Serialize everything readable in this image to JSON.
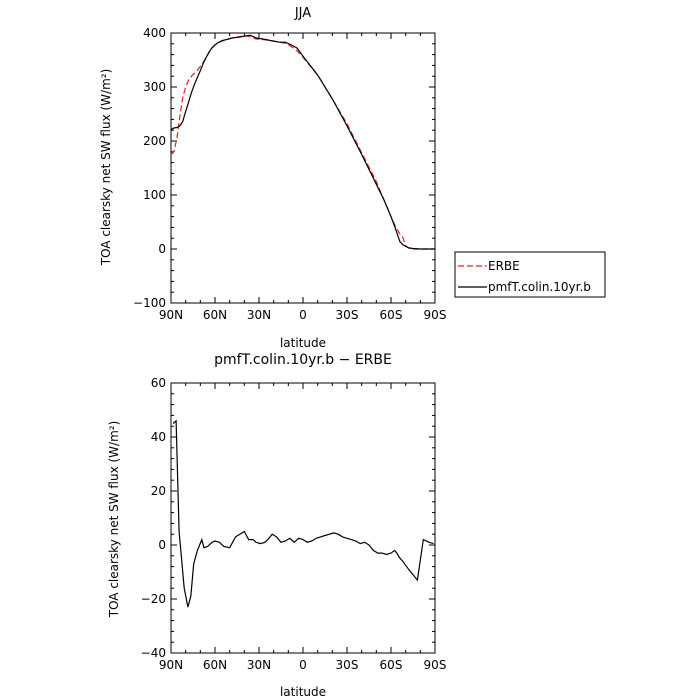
{
  "chart_data": [
    {
      "type": "line",
      "title": "JJA",
      "xlabel": "latitude",
      "ylabel": "TOA clearsky net SW flux (W/m²)",
      "xlim": [
        90,
        -90
      ],
      "ylim": [
        -100,
        400
      ],
      "xticks": [
        {
          "value": 90,
          "label": "90N"
        },
        {
          "value": 60,
          "label": "60N"
        },
        {
          "value": 30,
          "label": "30N"
        },
        {
          "value": 0,
          "label": "0"
        },
        {
          "value": -30,
          "label": "30S"
        },
        {
          "value": -60,
          "label": "60S"
        },
        {
          "value": -90,
          "label": "90S"
        }
      ],
      "yticks": [
        {
          "value": 400,
          "label": "400"
        },
        {
          "value": 300,
          "label": "300"
        },
        {
          "value": 200,
          "label": "200"
        },
        {
          "value": 100,
          "label": "100"
        },
        {
          "value": 0,
          "label": "0"
        },
        {
          "value": -100,
          "label": "−100"
        }
      ],
      "legend_position": "outside-right",
      "series": [
        {
          "name": "ERBE",
          "color": "#e02020",
          "dash": "dashed",
          "x": [
            90,
            88,
            86,
            84,
            82,
            80,
            78,
            76,
            74,
            72,
            70,
            68,
            66,
            64,
            62,
            60,
            58,
            55,
            52,
            48,
            44,
            40,
            36,
            32,
            28,
            24,
            20,
            16,
            12,
            8,
            4,
            0,
            -10,
            -20,
            -30,
            -40,
            -50,
            -55,
            -60,
            -63,
            -66,
            -68,
            -70,
            -72,
            -75,
            -80,
            -85,
            -90
          ],
          "y": [
            175,
            180,
            205,
            245,
            280,
            300,
            313,
            320,
            326,
            331,
            338,
            346,
            355,
            364,
            372,
            378,
            382,
            385,
            388,
            391,
            393,
            395,
            393,
            389,
            388,
            387,
            385,
            383,
            381,
            375,
            367,
            355,
            322,
            278,
            232,
            178,
            125,
            92,
            60,
            42,
            28,
            22,
            6,
            2,
            0,
            0,
            0,
            0
          ]
        },
        {
          "name": "pmfT.colin.10yr.b",
          "color": "#000000",
          "dash": "solid",
          "x": [
            90,
            88,
            86,
            84,
            82,
            80,
            78,
            76,
            74,
            72,
            70,
            68,
            66,
            64,
            62,
            60,
            58,
            55,
            52,
            48,
            44,
            40,
            36,
            32,
            28,
            24,
            20,
            16,
            12,
            8,
            4,
            0,
            -10,
            -20,
            -30,
            -40,
            -50,
            -55,
            -60,
            -63,
            -66,
            -68,
            -70,
            -72,
            -75,
            -80,
            -85,
            -90
          ],
          "y": [
            221,
            224,
            225,
            228,
            236,
            255,
            272,
            290,
            305,
            318,
            330,
            344,
            355,
            365,
            373,
            378,
            382,
            386,
            388,
            391,
            392,
            394,
            396,
            391,
            389,
            387,
            385,
            383,
            383,
            378,
            372,
            357,
            322,
            278,
            228,
            175,
            120,
            92,
            60,
            38,
            14,
            8,
            5,
            2,
            1,
            0,
            0,
            0
          ]
        }
      ]
    },
    {
      "type": "line",
      "title": "pmfT.colin.10yr.b − ERBE",
      "xlabel": "latitude",
      "ylabel": "TOA clearsky net SW flux (W/m²)",
      "xlim": [
        90,
        -90
      ],
      "ylim": [
        -40,
        60
      ],
      "xticks": [
        {
          "value": 90,
          "label": "90N"
        },
        {
          "value": 60,
          "label": "60N"
        },
        {
          "value": 30,
          "label": "30N"
        },
        {
          "value": 0,
          "label": "0"
        },
        {
          "value": -30,
          "label": "30S"
        },
        {
          "value": -60,
          "label": "60S"
        },
        {
          "value": -90,
          "label": "90S"
        }
      ],
      "yticks": [
        {
          "value": 60,
          "label": "60"
        },
        {
          "value": 40,
          "label": "40"
        },
        {
          "value": 20,
          "label": "20"
        },
        {
          "value": 0,
          "label": "0"
        },
        {
          "value": -20,
          "label": "−20"
        },
        {
          "value": -40,
          "label": "−40"
        }
      ],
      "series": [
        {
          "color": "#000000",
          "dash": "solid",
          "x": [
            88.5,
            86.5,
            84.5,
            83,
            81,
            78.5,
            76.5,
            74.5,
            72,
            69,
            67.5,
            65,
            62,
            60,
            57,
            54,
            50,
            46,
            43,
            40,
            37,
            34,
            32,
            29,
            26,
            24,
            21,
            18,
            15,
            12,
            9,
            6,
            3,
            0,
            -3,
            -6,
            -9,
            -12,
            -15,
            -18,
            -21,
            -24,
            -27,
            -30,
            -33,
            -36,
            -39,
            -42,
            -45,
            -48,
            -51,
            -54,
            -57,
            -60,
            -62.5,
            -64,
            -65.5,
            -68,
            -72,
            -78,
            -82,
            -86,
            -89
          ],
          "y": [
            45,
            46,
            5,
            -4,
            -16,
            -23,
            -19,
            -7,
            -2,
            2,
            -1,
            -0.5,
            1,
            1.5,
            1,
            -0.5,
            -1,
            3,
            4,
            5,
            2,
            2,
            1,
            0.5,
            1,
            2,
            4,
            3,
            1,
            1.5,
            2.5,
            1,
            2.5,
            2,
            1,
            1.5,
            2.5,
            3,
            3.5,
            4,
            4.5,
            4,
            3,
            2.5,
            2,
            1.5,
            0.5,
            1,
            0,
            -2,
            -3,
            -3,
            -3.5,
            -3,
            -2,
            -3,
            -4.5,
            -6,
            -9,
            -13,
            2,
            1,
            0.5
          ]
        }
      ]
    }
  ]
}
